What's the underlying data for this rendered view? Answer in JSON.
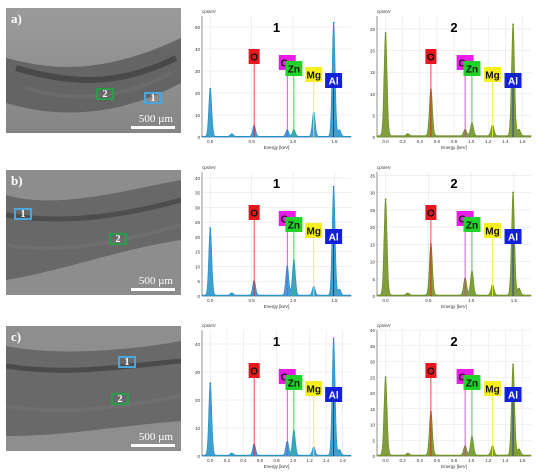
{
  "rows": [
    {
      "label": "a)",
      "scale_label": "500 µm",
      "markers": [
        {
          "id": "2",
          "color": "green"
        },
        {
          "id": "1",
          "color": "blue"
        }
      ]
    },
    {
      "label": "b)",
      "scale_label": "500 µm",
      "markers": [
        {
          "id": "1",
          "color": "blue"
        },
        {
          "id": "2",
          "color": "green"
        }
      ]
    },
    {
      "label": "c)",
      "scale_label": "500 µm",
      "markers": [
        {
          "id": "1",
          "color": "blue"
        },
        {
          "id": "2",
          "color": "green"
        }
      ]
    }
  ],
  "chart_data": [
    {
      "type": "area",
      "title": "1",
      "ylabel": "cps/eV",
      "xlabel": "Energy [keV]",
      "xlim": [
        -0.1,
        1.7
      ],
      "ylim": [
        0,
        55
      ],
      "yticks": [
        0,
        10,
        20,
        30,
        40,
        50
      ],
      "xticks": [
        0.0,
        0.5,
        1.0,
        1.5
      ],
      "color": "#1f8fc8",
      "peaks": [
        {
          "x": 0.0,
          "y": 22
        },
        {
          "x": 0.26,
          "y": 1.2
        },
        {
          "x": 0.53,
          "y": 5
        },
        {
          "x": 0.93,
          "y": 3
        },
        {
          "x": 1.01,
          "y": 3
        },
        {
          "x": 1.25,
          "y": 11
        },
        {
          "x": 1.49,
          "y": 52
        },
        {
          "x": 1.56,
          "y": 3
        }
      ],
      "elements": [
        {
          "symbol": "O",
          "x": 0.53,
          "bg": "#e8171f"
        },
        {
          "symbol": "Cu",
          "x": 0.93,
          "bg": "#e91ee6"
        },
        {
          "symbol": "Zn",
          "x": 1.01,
          "bg": "#22d12a"
        },
        {
          "symbol": "Mg",
          "x": 1.25,
          "bg": "#f7ef1d"
        },
        {
          "symbol": "Al",
          "x": 1.49,
          "bg": "#1221d8"
        }
      ]
    },
    {
      "type": "area",
      "title": "2",
      "ylabel": "cps/eV",
      "xlabel": "Energy [keV]",
      "xlim": [
        -0.1,
        1.7
      ],
      "ylim": [
        0,
        28
      ],
      "yticks": [
        0,
        5,
        10,
        15,
        20,
        25
      ],
      "xticks": [
        0.0,
        0.2,
        0.4,
        0.6,
        0.8,
        1.0,
        1.2,
        1.4,
        1.6
      ],
      "color": "#6b8d1c",
      "peaks": [
        {
          "x": 0.0,
          "y": 24
        },
        {
          "x": 0.26,
          "y": 0.5
        },
        {
          "x": 0.53,
          "y": 11
        },
        {
          "x": 0.93,
          "y": 1.5
        },
        {
          "x": 1.01,
          "y": 3
        },
        {
          "x": 1.25,
          "y": 2.5
        },
        {
          "x": 1.49,
          "y": 26
        },
        {
          "x": 1.56,
          "y": 1.5
        }
      ],
      "elements": [
        {
          "symbol": "O",
          "x": 0.53,
          "bg": "#e8171f"
        },
        {
          "symbol": "Cu",
          "x": 0.93,
          "bg": "#e91ee6"
        },
        {
          "symbol": "Zn",
          "x": 1.01,
          "bg": "#22d12a"
        },
        {
          "symbol": "Mg",
          "x": 1.25,
          "bg": "#f7ef1d"
        },
        {
          "symbol": "Al",
          "x": 1.49,
          "bg": "#1221d8"
        }
      ]
    },
    {
      "type": "area",
      "title": "1",
      "ylabel": "cps/eV",
      "xlabel": "Energy [keV]",
      "xlim": [
        -0.1,
        1.7
      ],
      "ylim": [
        0,
        42
      ],
      "yticks": [
        0,
        5,
        10,
        15,
        20,
        25,
        30,
        35,
        40
      ],
      "xticks": [
        0.0,
        0.5,
        1.0,
        1.5
      ],
      "color": "#1f8fc8",
      "peaks": [
        {
          "x": 0.0,
          "y": 23
        },
        {
          "x": 0.26,
          "y": 0.8
        },
        {
          "x": 0.53,
          "y": 5
        },
        {
          "x": 0.93,
          "y": 10
        },
        {
          "x": 1.01,
          "y": 12
        },
        {
          "x": 1.25,
          "y": 3
        },
        {
          "x": 1.49,
          "y": 37
        },
        {
          "x": 1.56,
          "y": 2
        }
      ],
      "elements": [
        {
          "symbol": "O",
          "x": 0.53,
          "bg": "#e8171f"
        },
        {
          "symbol": "Cu",
          "x": 0.93,
          "bg": "#e91ee6"
        },
        {
          "symbol": "Zn",
          "x": 1.01,
          "bg": "#22d12a"
        },
        {
          "symbol": "Mg",
          "x": 1.25,
          "bg": "#f7ef1d"
        },
        {
          "symbol": "Al",
          "x": 1.49,
          "bg": "#1221d8"
        }
      ]
    },
    {
      "type": "area",
      "title": "2",
      "ylabel": "cps/eV",
      "xlabel": "Energy [keV]",
      "xlim": [
        -0.1,
        1.7
      ],
      "ylim": [
        0,
        36
      ],
      "yticks": [
        0,
        5,
        10,
        15,
        20,
        25,
        30,
        35
      ],
      "xticks": [
        0.0,
        0.5,
        1.0,
        1.5
      ],
      "color": "#6b8d1c",
      "peaks": [
        {
          "x": 0.0,
          "y": 28
        },
        {
          "x": 0.26,
          "y": 0.6
        },
        {
          "x": 0.53,
          "y": 15
        },
        {
          "x": 0.93,
          "y": 5
        },
        {
          "x": 1.01,
          "y": 7
        },
        {
          "x": 1.25,
          "y": 3
        },
        {
          "x": 1.49,
          "y": 30
        },
        {
          "x": 1.56,
          "y": 2
        }
      ],
      "elements": [
        {
          "symbol": "O",
          "x": 0.53,
          "bg": "#e8171f"
        },
        {
          "symbol": "Cu",
          "x": 0.93,
          "bg": "#e91ee6"
        },
        {
          "symbol": "Zn",
          "x": 1.01,
          "bg": "#22d12a"
        },
        {
          "symbol": "Mg",
          "x": 1.25,
          "bg": "#f7ef1d"
        },
        {
          "symbol": "Al",
          "x": 1.49,
          "bg": "#1221d8"
        }
      ]
    },
    {
      "type": "area",
      "title": "1",
      "ylabel": "cps/eV",
      "xlabel": "Energy [keV]",
      "xlim": [
        -0.1,
        1.7
      ],
      "ylim": [
        0,
        45
      ],
      "yticks": [
        0,
        10,
        20,
        30,
        40
      ],
      "xticks": [
        0.0,
        0.2,
        0.4,
        0.6,
        0.8,
        1.0,
        1.2,
        1.4,
        1.6
      ],
      "color": "#1f8fc8",
      "peaks": [
        {
          "x": 0.0,
          "y": 26
        },
        {
          "x": 0.26,
          "y": 0.8
        },
        {
          "x": 0.53,
          "y": 4
        },
        {
          "x": 0.93,
          "y": 5
        },
        {
          "x": 1.01,
          "y": 9
        },
        {
          "x": 1.25,
          "y": 3
        },
        {
          "x": 1.49,
          "y": 42
        },
        {
          "x": 1.56,
          "y": 2
        }
      ],
      "elements": [
        {
          "symbol": "O",
          "x": 0.53,
          "bg": "#e8171f"
        },
        {
          "symbol": "Cu",
          "x": 0.93,
          "bg": "#e91ee6"
        },
        {
          "symbol": "Zn",
          "x": 1.01,
          "bg": "#22d12a"
        },
        {
          "symbol": "Mg",
          "x": 1.25,
          "bg": "#f7ef1d"
        },
        {
          "symbol": "Al",
          "x": 1.49,
          "bg": "#1221d8"
        }
      ]
    },
    {
      "type": "area",
      "title": "2",
      "ylabel": "cps/eV",
      "xlabel": "Energy [keV]",
      "xlim": [
        -0.1,
        1.7
      ],
      "ylim": [
        0,
        40
      ],
      "yticks": [
        0,
        5,
        10,
        15,
        20,
        25,
        30,
        35,
        40
      ],
      "xticks": [
        0.0,
        0.2,
        0.4,
        0.6,
        0.8,
        1.0,
        1.2,
        1.4,
        1.6
      ],
      "color": "#6b8d1c",
      "peaks": [
        {
          "x": 0.0,
          "y": 25
        },
        {
          "x": 0.26,
          "y": 0.6
        },
        {
          "x": 0.53,
          "y": 14
        },
        {
          "x": 0.93,
          "y": 3
        },
        {
          "x": 1.01,
          "y": 6
        },
        {
          "x": 1.25,
          "y": 3
        },
        {
          "x": 1.49,
          "y": 29
        },
        {
          "x": 1.56,
          "y": 2
        }
      ],
      "elements": [
        {
          "symbol": "O",
          "x": 0.53,
          "bg": "#e8171f"
        },
        {
          "symbol": "Cu",
          "x": 0.93,
          "bg": "#e91ee6"
        },
        {
          "symbol": "Zn",
          "x": 1.01,
          "bg": "#22d12a"
        },
        {
          "symbol": "Mg",
          "x": 1.25,
          "bg": "#f7ef1d"
        },
        {
          "symbol": "Al",
          "x": 1.49,
          "bg": "#1221d8"
        }
      ]
    }
  ]
}
